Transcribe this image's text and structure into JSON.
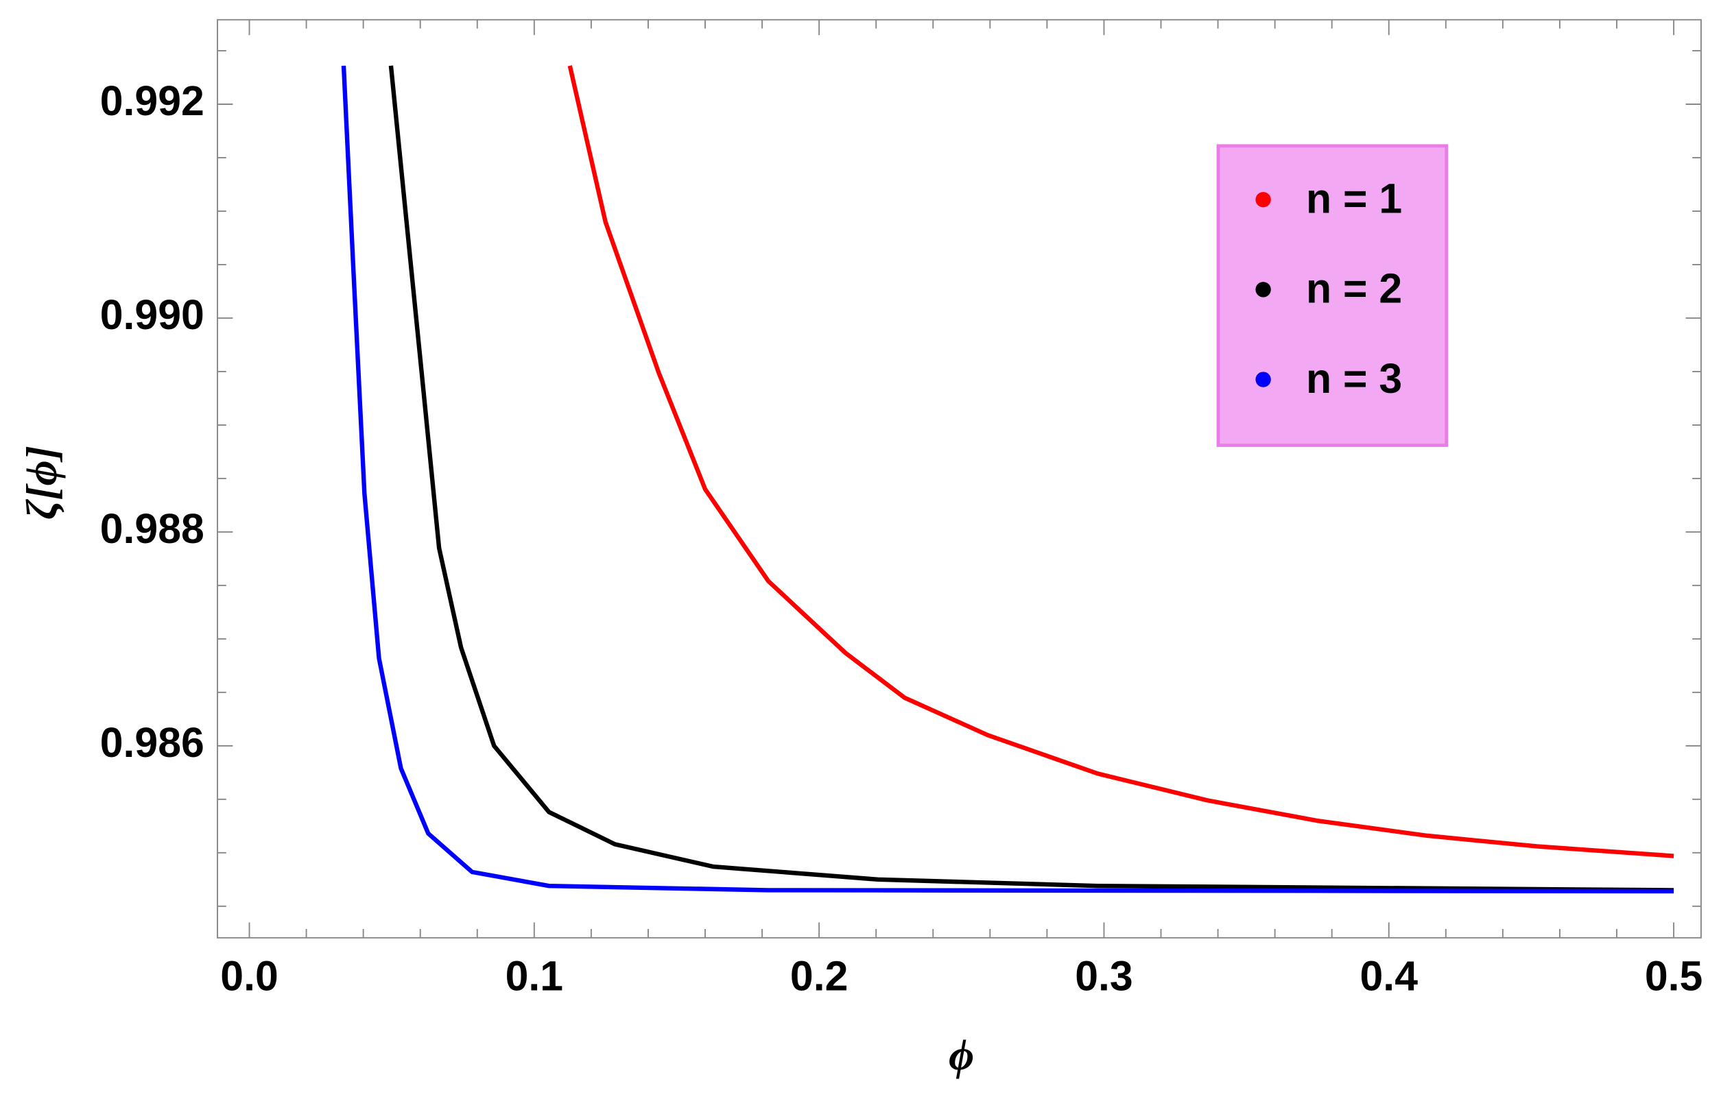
{
  "chart_data": {
    "type": "line",
    "x_label": "ϕ",
    "y_label": "ζ[ϕ]",
    "xlim": [
      -0.0112,
      0.5096
    ],
    "ylim": [
      0.984205,
      0.99279
    ],
    "xticks": [
      {
        "value": 0,
        "label": "0.0"
      },
      0.1,
      0.2,
      0.3,
      0.4,
      0.5
    ],
    "yticks": [
      0.992,
      {
        "value": 0.99,
        "label": "0.990"
      },
      0.988,
      0.986
    ],
    "xminorticks": [
      0.02,
      0.04,
      0.06,
      0.08,
      0.12,
      0.14,
      0.16,
      0.18,
      0.22,
      0.24,
      0.26,
      0.28,
      0.32,
      0.34,
      0.36,
      0.38,
      0.42,
      0.44,
      0.46,
      0.48
    ],
    "yminorticks": [
      0.9845,
      0.985,
      0.9855,
      0.9865,
      0.987,
      0.9875,
      0.9885,
      0.989,
      0.9895,
      0.9905,
      0.991,
      0.9915,
      0.9925
    ],
    "legend_position": "upper-right",
    "series": [
      {
        "name": "n = 1",
        "color": "#ff0000",
        "x": [
          0.1125,
          0.125,
          0.1437,
          0.16,
          0.1822,
          0.2092,
          0.23,
          0.2592,
          0.2978,
          0.3363,
          0.3748,
          0.4133,
          0.4519,
          0.5
        ],
        "values": [
          0.99236,
          0.9909,
          0.98949,
          0.9884,
          0.98754,
          0.98687,
          0.98645,
          0.9861,
          0.98574,
          0.98549,
          0.9853,
          0.98516,
          0.98506,
          0.98497
        ]
      },
      {
        "name": "n = 2",
        "color": "#000000",
        "x": [
          0.0497,
          0.0551,
          0.0609,
          0.0666,
          0.0743,
          0.0859,
          0.1052,
          0.1283,
          0.1629,
          0.2207,
          0.2978,
          0.5
        ],
        "values": [
          0.99236,
          0.99092,
          0.98938,
          0.98785,
          0.98692,
          0.986,
          0.98538,
          0.98508,
          0.98487,
          0.98475,
          0.98469,
          0.98465
        ]
      },
      {
        "name": "n = 3",
        "color": "#0000ff",
        "x": [
          0.0331,
          0.0366,
          0.0404,
          0.0455,
          0.0532,
          0.0628,
          0.0782,
          0.1052,
          0.1822,
          0.5
        ],
        "values": [
          0.99236,
          0.99041,
          0.98836,
          0.98682,
          0.98579,
          0.98518,
          0.98482,
          0.98469,
          0.98465,
          0.98464
        ]
      }
    ]
  }
}
